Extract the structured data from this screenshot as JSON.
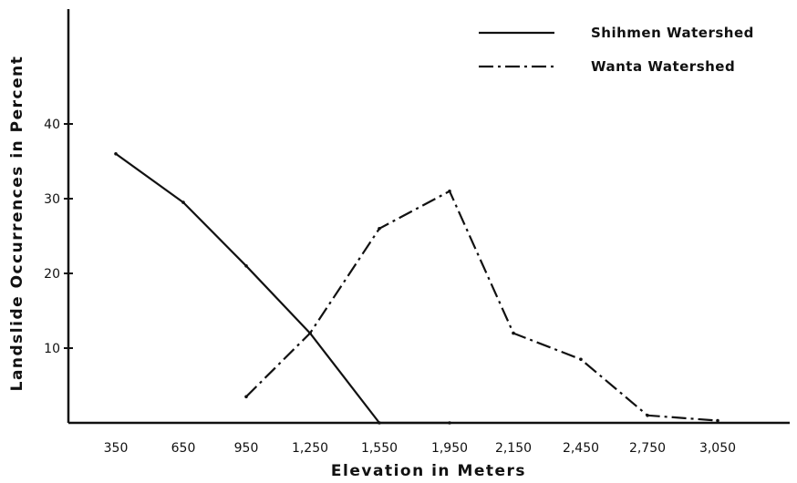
{
  "chart_data": {
    "type": "line",
    "title": "",
    "xlabel": "Elevation in Meters",
    "ylabel": "Landslide Occurrences in Percent",
    "categories": [
      "350",
      "650",
      "950",
      "1,250",
      "1,550",
      "1,950",
      "2,150",
      "2,450",
      "2,750",
      "3,050"
    ],
    "yticks": [
      "10",
      "20",
      "30",
      "40"
    ],
    "ylim": [
      0,
      56
    ],
    "legend_position": "top-right",
    "series": [
      {
        "name": "Shihmen Watershed",
        "style": "solid",
        "x": [
          "350",
          "650",
          "950",
          "1,250",
          "1,550",
          "1,950"
        ],
        "values": [
          36,
          29.5,
          21,
          12,
          0,
          0
        ]
      },
      {
        "name": "Wanta Watershed",
        "style": "dash-dot",
        "x": [
          "950",
          "1,250",
          "1,550",
          "1,950",
          "2,150",
          "2,450",
          "2,750",
          "3,050"
        ],
        "values": [
          3.5,
          12,
          26,
          31,
          12,
          8.5,
          1,
          0.3
        ]
      }
    ]
  }
}
